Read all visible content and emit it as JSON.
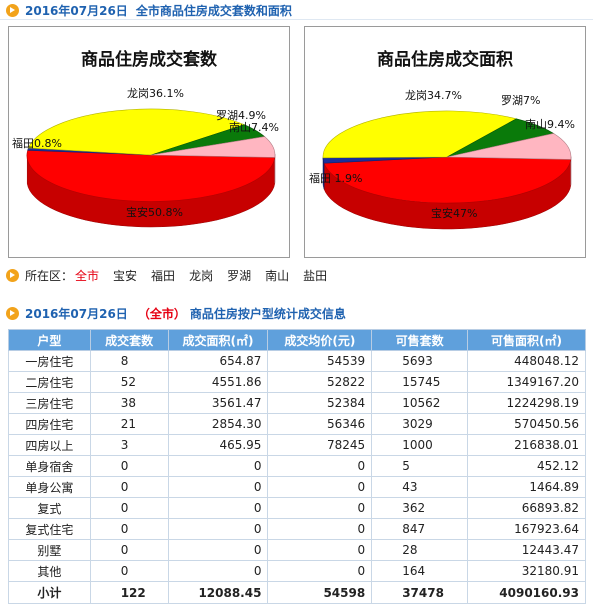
{
  "header": {
    "date": "2016年07月26日",
    "title": "全市商品住房成交套数和面积"
  },
  "chart_data": [
    {
      "type": "pie",
      "title": "商品住房成交套数",
      "slices": [
        {
          "name": "宝安",
          "value": 50.8,
          "label": "宝安50.8%",
          "color": "#ff0000"
        },
        {
          "name": "福田",
          "value": 0.8,
          "label": "福田0.8%",
          "color": "#1a2f9c"
        },
        {
          "name": "龙岗",
          "value": 36.1,
          "label": "龙岗36.1%",
          "color": "#ffff00"
        },
        {
          "name": "罗湖",
          "value": 4.9,
          "label": "罗湖4.9%",
          "color": "#0a7a0a"
        },
        {
          "name": "南山",
          "value": 7.4,
          "label": "南山7.4%",
          "color": "#ffb6c1"
        }
      ]
    },
    {
      "type": "pie",
      "title": "商品住房成交面积",
      "slices": [
        {
          "name": "宝安",
          "value": 47,
          "label": "宝安47%",
          "color": "#ff0000"
        },
        {
          "name": "福田",
          "value": 1.9,
          "label": "福田 1.9%",
          "color": "#1a2f9c"
        },
        {
          "name": "龙岗",
          "value": 34.7,
          "label": "龙岗34.7%",
          "color": "#ffff00"
        },
        {
          "name": "罗湖",
          "value": 7,
          "label": "罗湖7%",
          "color": "#0a7a0a"
        },
        {
          "name": "南山",
          "value": 9.4,
          "label": "南山9.4%",
          "color": "#ffb6c1"
        }
      ]
    }
  ],
  "districts": {
    "prefix": "所在区：",
    "items": [
      "全市",
      "宝安",
      "福田",
      "龙岗",
      "罗湖",
      "南山",
      "盐田"
    ],
    "active": "全市"
  },
  "table_section": {
    "date": "2016年07月26日",
    "scope": "（全市）",
    "title": "商品住房按户型统计成交信息"
  },
  "table": {
    "headers": [
      "户型",
      "成交套数",
      "成交面积(㎡)",
      "成交均价(元)",
      "可售套数",
      "可售面积(㎡)"
    ],
    "rows": [
      [
        "一房住宅",
        "8",
        "654.87",
        "54539",
        "5693",
        "448048.12"
      ],
      [
        "二房住宅",
        "52",
        "4551.86",
        "52822",
        "15745",
        "1349167.20"
      ],
      [
        "三房住宅",
        "38",
        "3561.47",
        "52384",
        "10562",
        "1224298.19"
      ],
      [
        "四房住宅",
        "21",
        "2854.30",
        "56346",
        "3029",
        "570450.56"
      ],
      [
        "四房以上",
        "3",
        "465.95",
        "78245",
        "1000",
        "216838.01"
      ],
      [
        "单身宿舍",
        "0",
        "0",
        "0",
        "5",
        "452.12"
      ],
      [
        "单身公寓",
        "0",
        "0",
        "0",
        "43",
        "1464.89"
      ],
      [
        "复式",
        "0",
        "0",
        "0",
        "362",
        "66893.82"
      ],
      [
        "复式住宅",
        "0",
        "0",
        "0",
        "847",
        "167923.64"
      ],
      [
        "别墅",
        "0",
        "0",
        "0",
        "28",
        "12443.47"
      ],
      [
        "其他",
        "0",
        "0",
        "0",
        "164",
        "32180.91"
      ]
    ],
    "total": [
      "小计",
      "122",
      "12088.45",
      "54598",
      "37478",
      "4090160.93"
    ]
  }
}
